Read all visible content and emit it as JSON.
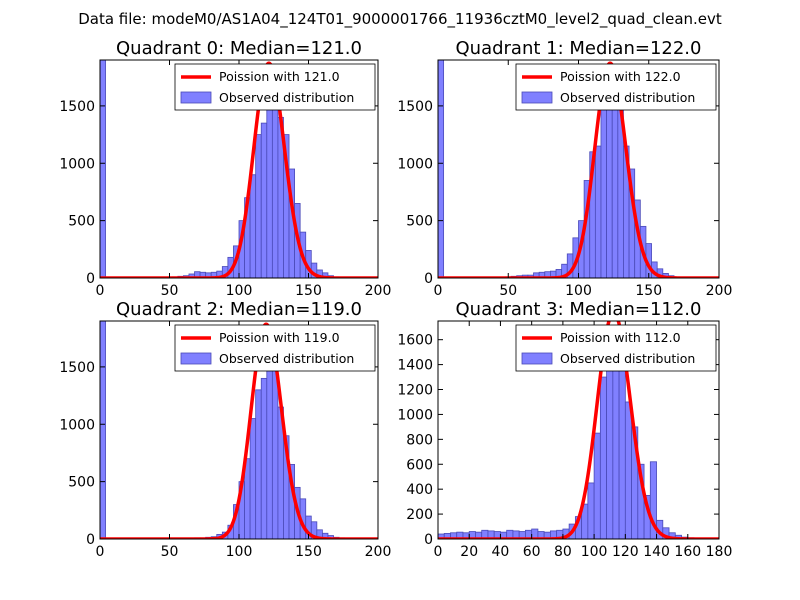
{
  "suptitle": "Data file: modeM0/AS1A04_124T01_9000001766_11936cztM0_level2_quad_clean.evt",
  "colors": {
    "bar_fill": "#8080ff",
    "bar_edge": "#4a4ab8",
    "fit_line": "#ff0000",
    "axis": "#000000"
  },
  "chart_data": [
    {
      "type": "bar",
      "title": "Quadrant 0: Median=121.0",
      "xlim": [
        0,
        200
      ],
      "ylim": [
        0,
        1900
      ],
      "xticks": [
        0,
        50,
        100,
        150,
        200
      ],
      "xtick_labels": [
        "0",
        "50",
        "100",
        "150",
        "200"
      ],
      "yticks": [
        0,
        500,
        1000,
        1500
      ],
      "ytick_labels": [
        "0",
        "500",
        "1000",
        "1500"
      ],
      "bin_width": 4,
      "bins": [
        [
          0,
          1900
        ],
        [
          52,
          10
        ],
        [
          56,
          15
        ],
        [
          60,
          20
        ],
        [
          64,
          35
        ],
        [
          68,
          55
        ],
        [
          72,
          50
        ],
        [
          76,
          45
        ],
        [
          80,
          50
        ],
        [
          84,
          60
        ],
        [
          88,
          100
        ],
        [
          92,
          180
        ],
        [
          96,
          280
        ],
        [
          100,
          500
        ],
        [
          104,
          700
        ],
        [
          108,
          900
        ],
        [
          112,
          1250
        ],
        [
          116,
          1350
        ],
        [
          120,
          1650
        ],
        [
          124,
          1750
        ],
        [
          128,
          1400
        ],
        [
          132,
          1250
        ],
        [
          136,
          950
        ],
        [
          140,
          650
        ],
        [
          144,
          400
        ],
        [
          148,
          240
        ],
        [
          152,
          130
        ],
        [
          156,
          70
        ],
        [
          160,
          45
        ],
        [
          164,
          20
        ],
        [
          168,
          10
        ]
      ],
      "fit": {
        "label": "Poission with 121.0",
        "mean": 121.0,
        "peak": 1870
      },
      "legend": {
        "fit": "Poission with 121.0",
        "observed": "Observed distribution",
        "loc": "top-right"
      }
    },
    {
      "type": "bar",
      "title": "Quadrant 1: Median=122.0",
      "xlim": [
        0,
        200
      ],
      "ylim": [
        0,
        1900
      ],
      "xticks": [
        0,
        50,
        100,
        150,
        200
      ],
      "xtick_labels": [
        "0",
        "50",
        "100",
        "150",
        "200"
      ],
      "yticks": [
        0,
        500,
        1000,
        1500
      ],
      "ytick_labels": [
        "0",
        "500",
        "1000",
        "1500"
      ],
      "bin_width": 4,
      "bins": [
        [
          0,
          1900
        ],
        [
          44,
          5
        ],
        [
          48,
          10
        ],
        [
          52,
          15
        ],
        [
          56,
          20
        ],
        [
          60,
          25
        ],
        [
          64,
          25
        ],
        [
          68,
          45
        ],
        [
          72,
          50
        ],
        [
          76,
          55
        ],
        [
          80,
          60
        ],
        [
          84,
          75
        ],
        [
          88,
          120
        ],
        [
          92,
          210
        ],
        [
          96,
          350
        ],
        [
          100,
          500
        ],
        [
          104,
          850
        ],
        [
          108,
          1100
        ],
        [
          112,
          1150
        ],
        [
          116,
          1600
        ],
        [
          120,
          1800
        ],
        [
          124,
          1500
        ],
        [
          128,
          1650
        ],
        [
          132,
          1150
        ],
        [
          136,
          950
        ],
        [
          140,
          680
        ],
        [
          144,
          450
        ],
        [
          148,
          300
        ],
        [
          152,
          140
        ],
        [
          156,
          80
        ],
        [
          160,
          40
        ],
        [
          164,
          20
        ],
        [
          168,
          10
        ]
      ],
      "fit": {
        "label": "Poission with 122.0",
        "mean": 122.0,
        "peak": 1870
      },
      "legend": {
        "fit": "Poission with 122.0",
        "observed": "Observed distribution",
        "loc": "top-right"
      }
    },
    {
      "type": "bar",
      "title": "Quadrant 2: Median=119.0",
      "xlim": [
        0,
        200
      ],
      "ylim": [
        0,
        1900
      ],
      "xticks": [
        0,
        50,
        100,
        150,
        200
      ],
      "xtick_labels": [
        "0",
        "50",
        "100",
        "150",
        "200"
      ],
      "yticks": [
        0,
        500,
        1000,
        1500
      ],
      "ytick_labels": [
        "0",
        "500",
        "1000",
        "1500"
      ],
      "bin_width": 4,
      "bins": [
        [
          0,
          1900
        ],
        [
          64,
          5
        ],
        [
          68,
          10
        ],
        [
          72,
          10
        ],
        [
          76,
          15
        ],
        [
          80,
          20
        ],
        [
          84,
          40
        ],
        [
          88,
          60
        ],
        [
          92,
          120
        ],
        [
          96,
          300
        ],
        [
          100,
          500
        ],
        [
          104,
          700
        ],
        [
          108,
          1050
        ],
        [
          112,
          1300
        ],
        [
          116,
          1400
        ],
        [
          120,
          1700
        ],
        [
          124,
          1500
        ],
        [
          128,
          1150
        ],
        [
          132,
          900
        ],
        [
          136,
          650
        ],
        [
          140,
          450
        ],
        [
          144,
          350
        ],
        [
          148,
          200
        ],
        [
          152,
          150
        ],
        [
          156,
          80
        ],
        [
          160,
          50
        ],
        [
          164,
          30
        ],
        [
          168,
          15
        ],
        [
          172,
          10
        ]
      ],
      "fit": {
        "label": "Poission with 119.0",
        "mean": 119.0,
        "peak": 1870
      },
      "legend": {
        "fit": "Poission with 119.0",
        "observed": "Observed distribution",
        "loc": "top-right"
      }
    },
    {
      "type": "bar",
      "title": "Quadrant 3: Median=112.0",
      "xlim": [
        0,
        180
      ],
      "ylim": [
        0,
        1750
      ],
      "xticks": [
        0,
        20,
        40,
        60,
        80,
        100,
        120,
        140,
        160,
        180
      ],
      "xtick_labels": [
        "0",
        "20",
        "40",
        "60",
        "80",
        "100",
        "120",
        "140",
        "160",
        "180"
      ],
      "yticks": [
        0,
        200,
        400,
        600,
        800,
        1000,
        1200,
        1400,
        1600
      ],
      "ytick_labels": [
        "0",
        "200",
        "400",
        "600",
        "800",
        "1000",
        "1200",
        "1400",
        "1600"
      ],
      "bin_width": 4,
      "bins": [
        [
          0,
          40
        ],
        [
          4,
          45
        ],
        [
          8,
          50
        ],
        [
          12,
          55
        ],
        [
          16,
          50
        ],
        [
          20,
          60
        ],
        [
          24,
          55
        ],
        [
          28,
          70
        ],
        [
          32,
          65
        ],
        [
          36,
          60
        ],
        [
          40,
          55
        ],
        [
          44,
          70
        ],
        [
          48,
          65
        ],
        [
          52,
          60
        ],
        [
          56,
          70
        ],
        [
          60,
          80
        ],
        [
          64,
          60
        ],
        [
          68,
          55
        ],
        [
          72,
          65
        ],
        [
          76,
          70
        ],
        [
          80,
          80
        ],
        [
          84,
          120
        ],
        [
          88,
          180
        ],
        [
          92,
          280
        ],
        [
          96,
          450
        ],
        [
          100,
          850
        ],
        [
          104,
          1300
        ],
        [
          108,
          1700
        ],
        [
          112,
          1550
        ],
        [
          116,
          1650
        ],
        [
          120,
          1100
        ],
        [
          124,
          900
        ],
        [
          128,
          600
        ],
        [
          132,
          350
        ],
        [
          136,
          620
        ],
        [
          140,
          150
        ],
        [
          144,
          90
        ],
        [
          148,
          50
        ],
        [
          152,
          30
        ],
        [
          156,
          15
        ],
        [
          160,
          10
        ]
      ],
      "fit": {
        "label": "Poission with 112.0",
        "mean": 112.0,
        "peak": 1820
      },
      "legend": {
        "fit": "Poission with 112.0",
        "observed": "Observed distribution",
        "loc": "top-right"
      }
    }
  ]
}
